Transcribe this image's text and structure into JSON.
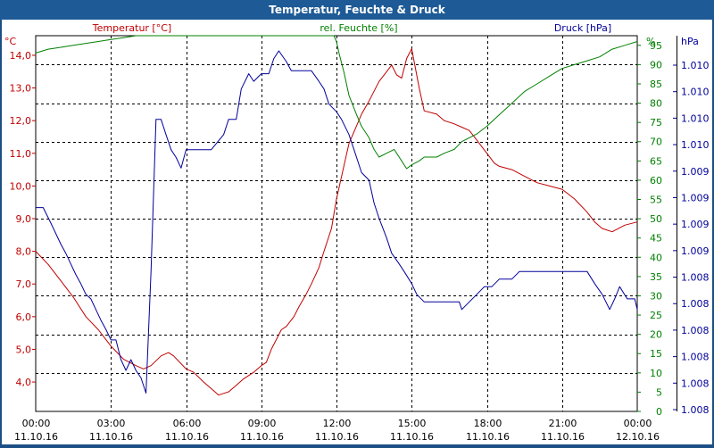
{
  "window": {
    "title": "Temperatur, Feuchte & Druck"
  },
  "colors": {
    "temperature": "#c00000",
    "humidity": "#008000",
    "pressure": "#00009a",
    "grid": "#000000",
    "background": "#ffffff",
    "titlebar": "#1e5a96"
  },
  "chart_data": {
    "type": "line",
    "title": "Temperatur, Feuchte & Druck",
    "grid": true,
    "x_ticks": [
      {
        "time": "00:00",
        "date": "11.10.16"
      },
      {
        "time": "03:00",
        "date": "11.10.16"
      },
      {
        "time": "06:00",
        "date": "11.10.16"
      },
      {
        "time": "09:00",
        "date": "11.10.16"
      },
      {
        "time": "12:00",
        "date": "11.10.16"
      },
      {
        "time": "15:00",
        "date": "11.10.16"
      },
      {
        "time": "18:00",
        "date": "11.10.16"
      },
      {
        "time": "21:00",
        "date": "11.10.16"
      },
      {
        "time": "00:00",
        "date": "12.10.16"
      }
    ],
    "axes": {
      "temperature": {
        "title": "Temperatur [°C]",
        "unit": "°C",
        "ylim": [
          3.1,
          14.6
        ],
        "ticks": [
          "4,0",
          "5,0",
          "6,0",
          "7,0",
          "8,0",
          "9,0",
          "10,0",
          "11,0",
          "12,0",
          "13,0",
          "14,0"
        ]
      },
      "humidity": {
        "title": "rel. Feuchte [%]",
        "unit": "%",
        "ylim": [
          0,
          97.5
        ],
        "ticks": [
          "0",
          "5",
          "10",
          "15",
          "20",
          "25",
          "30",
          "35",
          "40",
          "45",
          "50",
          "55",
          "60",
          "65",
          "70",
          "75",
          "80",
          "85",
          "90",
          "95"
        ]
      },
      "pressure": {
        "title": "Druck [hPa]",
        "unit": "hPa",
        "ticks": [
          "1.008",
          "1.008",
          "1.008",
          "1.008",
          "1.008",
          "1.008",
          "1.009",
          "1.009",
          "1.009",
          "1.009",
          "1.010",
          "1.010",
          "1.010",
          "1.010"
        ]
      }
    },
    "series": [
      {
        "name": "Temperatur [°C]",
        "axis": "temperature",
        "x": [
          0,
          0.5,
          1,
          1.5,
          2,
          2.5,
          3,
          3.5,
          4,
          4.3,
          4.6,
          5,
          5.3,
          5.5,
          6,
          6.3,
          6.7,
          7,
          7.3,
          7.7,
          8,
          8.3,
          8.7,
          9,
          9.2,
          9.4,
          9.6,
          9.8,
          10,
          10.3,
          10.5,
          10.8,
          11,
          11.3,
          11.5,
          11.8,
          12,
          12.5,
          13,
          13.3,
          13.5,
          13.7,
          14,
          14.2,
          14.4,
          14.6,
          14.8,
          15,
          15.3,
          15.5,
          16,
          16.3,
          16.7,
          17,
          17.3,
          17.6,
          18,
          18.3,
          18.5,
          19,
          19.5,
          20,
          20.5,
          21,
          21.5,
          22,
          22.3,
          22.6,
          23,
          23.5,
          24
        ],
        "y": [
          8.0,
          7.6,
          7.1,
          6.6,
          6.0,
          5.6,
          5.1,
          4.7,
          4.5,
          4.4,
          4.5,
          4.8,
          4.9,
          4.8,
          4.4,
          4.3,
          4.0,
          3.8,
          3.6,
          3.7,
          3.9,
          4.1,
          4.3,
          4.5,
          4.6,
          5.0,
          5.3,
          5.6,
          5.7,
          6.0,
          6.3,
          6.7,
          7.0,
          7.5,
          8.0,
          8.7,
          9.6,
          11.3,
          12.2,
          12.6,
          12.9,
          13.2,
          13.5,
          13.7,
          13.4,
          13.3,
          13.9,
          14.2,
          13.0,
          12.3,
          12.2,
          12.0,
          11.9,
          11.8,
          11.7,
          11.4,
          11.0,
          10.7,
          10.6,
          10.5,
          10.3,
          10.1,
          10.0,
          9.9,
          9.6,
          9.2,
          8.9,
          8.7,
          8.6,
          8.8,
          8.9
        ]
      },
      {
        "name": "rel. Feuchte [%]",
        "axis": "humidity",
        "x": [
          0,
          0.5,
          1,
          1.5,
          2,
          2.5,
          3,
          3.5,
          4,
          5,
          6,
          7,
          8,
          9,
          10,
          10.5,
          11,
          11.5,
          11.9,
          12,
          12.1,
          12.3,
          12.5,
          12.8,
          13,
          13.3,
          13.5,
          13.7,
          14,
          14.3,
          14.6,
          14.8,
          15,
          15.3,
          15.5,
          16,
          16.3,
          16.7,
          17,
          17.3,
          17.6,
          18,
          18.5,
          19,
          19.5,
          20,
          20.5,
          21,
          21.5,
          22,
          22.5,
          23,
          23.5,
          24
        ],
        "y": [
          93,
          94,
          94.5,
          95,
          95.5,
          96,
          96.5,
          97,
          97.5,
          97.5,
          97.5,
          97.5,
          97.5,
          97.5,
          97.5,
          97.5,
          97.5,
          97.5,
          97.5,
          96,
          93,
          88,
          82,
          77,
          74,
          71,
          68,
          66,
          67,
          68,
          65,
          63,
          64,
          65,
          66,
          66,
          67,
          68,
          70,
          71,
          72,
          74,
          77,
          80,
          83,
          85,
          87,
          89,
          90,
          91,
          92,
          94,
          95,
          96
        ]
      },
      {
        "name": "Druck [hPa]",
        "axis": "pressure",
        "x": [
          0,
          0.3,
          0.6,
          0.8,
          1,
          1.2,
          1.4,
          1.6,
          1.8,
          2,
          2.2,
          2.4,
          2.6,
          2.8,
          3,
          3.2,
          3.4,
          3.6,
          3.8,
          4,
          4.2,
          4.4,
          4.6,
          4.8,
          5,
          5.2,
          5.4,
          5.6,
          5.8,
          6,
          6.2,
          6.5,
          7,
          7.5,
          7.7,
          8,
          8.2,
          8.5,
          8.7,
          9,
          9.3,
          9.5,
          9.7,
          10,
          10.2,
          10.5,
          11,
          11.3,
          11.5,
          11.7,
          12,
          12.2,
          12.5,
          12.7,
          13,
          13.3,
          13.5,
          13.7,
          14,
          14.2,
          14.5,
          14.7,
          15,
          15.2,
          15.5,
          15.8,
          16,
          16.3,
          16.6,
          16.9,
          17,
          17.3,
          17.6,
          17.9,
          18.2,
          18.5,
          19,
          19.3,
          19.6,
          20,
          20.5,
          21,
          21.5,
          22,
          22.3,
          22.6,
          22.9,
          23.1,
          23.3,
          23.6,
          23.9,
          24
        ],
        "y": [
          1008.72,
          1008.72,
          1008.62,
          1008.55,
          1008.48,
          1008.42,
          1008.35,
          1008.28,
          1008.22,
          1008.15,
          1008.12,
          1008.05,
          1007.98,
          1007.92,
          1007.85,
          1007.85,
          1007.72,
          1007.65,
          1007.72,
          1007.65,
          1007.6,
          1007.5,
          1008.3,
          1009.3,
          1009.3,
          1009.2,
          1009.1,
          1009.05,
          1008.98,
          1009.1,
          1009.1,
          1009.1,
          1009.1,
          1009.2,
          1009.3,
          1009.3,
          1009.5,
          1009.6,
          1009.55,
          1009.6,
          1009.6,
          1009.7,
          1009.75,
          1009.68,
          1009.62,
          1009.62,
          1009.62,
          1009.55,
          1009.5,
          1009.4,
          1009.35,
          1009.3,
          1009.2,
          1009.1,
          1008.95,
          1008.9,
          1008.75,
          1008.65,
          1008.52,
          1008.42,
          1008.35,
          1008.3,
          1008.22,
          1008.15,
          1008.1,
          1008.1,
          1008.1,
          1008.1,
          1008.1,
          1008.1,
          1008.05,
          1008.1,
          1008.15,
          1008.2,
          1008.2,
          1008.25,
          1008.25,
          1008.3,
          1008.3,
          1008.3,
          1008.3,
          1008.3,
          1008.3,
          1008.3,
          1008.22,
          1008.15,
          1008.05,
          1008.12,
          1008.2,
          1008.12,
          1008.12,
          1008.05
        ]
      }
    ],
    "pressure_ylim": [
      1007.38,
      1009.85
    ],
    "x_range": [
      0,
      24
    ]
  }
}
